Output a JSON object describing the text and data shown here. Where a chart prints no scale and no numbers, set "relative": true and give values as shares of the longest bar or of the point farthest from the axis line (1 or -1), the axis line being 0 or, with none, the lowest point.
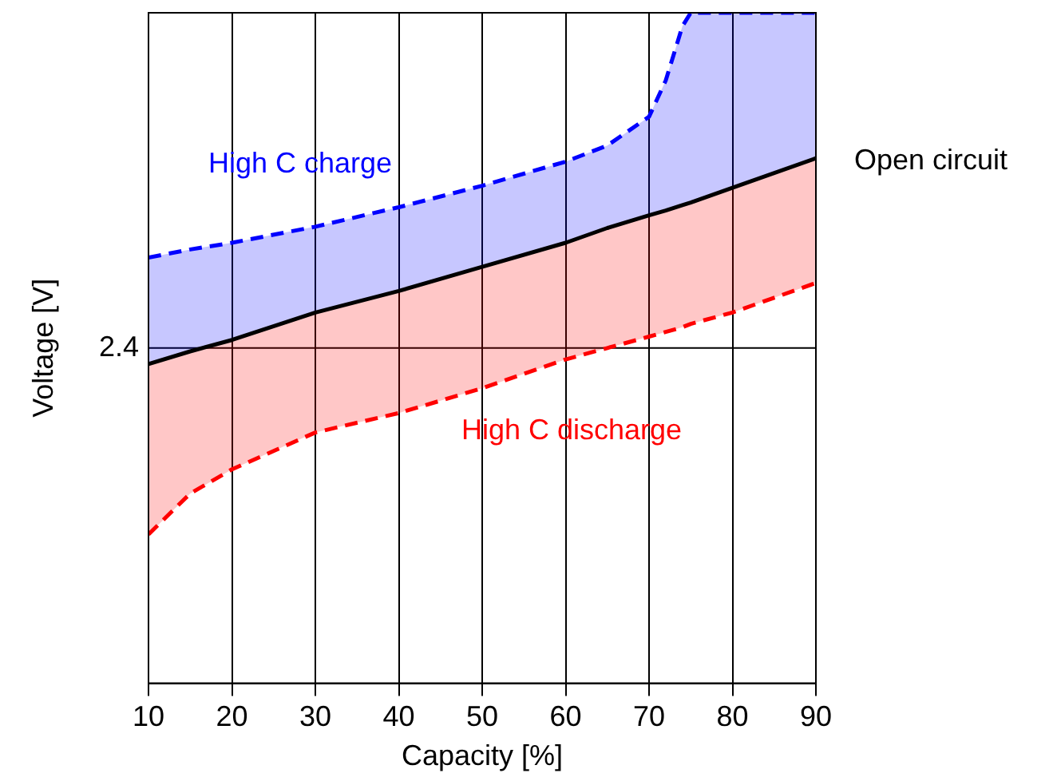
{
  "chart_data": {
    "type": "line",
    "relative": true,
    "xlabel": "Capacity [%]",
    "ylabel": "Voltage [V]",
    "xlim": [
      10,
      90
    ],
    "xticks": [
      10,
      20,
      30,
      40,
      50,
      60,
      70,
      80,
      90
    ],
    "grid": "x",
    "legend": false,
    "marker": "none",
    "ref_lines": [
      {
        "axis": "y",
        "value": 0.5,
        "color": "#000000"
      }
    ],
    "annotations": [
      "2.4"
    ],
    "series": [
      {
        "name": "High C charge",
        "color": "#0000ff",
        "line_style": "dashed",
        "x": [
          10,
          15,
          20,
          30,
          40,
          50,
          60,
          65,
          70,
          72,
          74,
          75,
          80,
          90
        ],
        "values": [
          0.635,
          0.647,
          0.657,
          0.681,
          0.71,
          0.742,
          0.778,
          0.802,
          0.845,
          0.899,
          0.98,
          1,
          1,
          1
        ],
        "upper": [
          0.635,
          0.647,
          0.657,
          0.681,
          0.71,
          0.742,
          0.778,
          0.802,
          0.845,
          0.899,
          0.98,
          1,
          1,
          1
        ],
        "lower": [
          0.476,
          0.495,
          0.512,
          0.553,
          0.585,
          0.621,
          0.657,
          0.679,
          0.698,
          0.705,
          0.713,
          0.717,
          0.739,
          0.783
        ]
      },
      {
        "name": "Open circuit",
        "color": "#000000",
        "line_style": "solid",
        "x": [
          10,
          15,
          20,
          30,
          40,
          50,
          60,
          65,
          70,
          72,
          74,
          75,
          80,
          90
        ],
        "values": [
          0.476,
          0.495,
          0.512,
          0.553,
          0.585,
          0.621,
          0.657,
          0.679,
          0.698,
          0.705,
          0.713,
          0.717,
          0.739,
          0.783
        ]
      },
      {
        "name": "High C discharge",
        "color": "#ff0000",
        "line_style": "dashed",
        "x": [
          10,
          15,
          20,
          30,
          40,
          50,
          60,
          65,
          70,
          72,
          74,
          75,
          80,
          90
        ],
        "values": [
          0.222,
          0.283,
          0.319,
          0.374,
          0.403,
          0.44,
          0.483,
          0.5,
          0.517,
          0.524,
          0.531,
          0.536,
          0.553,
          0.597
        ],
        "lower": [
          0.222,
          0.283,
          0.319,
          0.374,
          0.403,
          0.44,
          0.483,
          0.5,
          0.517,
          0.524,
          0.531,
          0.536,
          0.553,
          0.597
        ],
        "upper": [
          0.476,
          0.495,
          0.512,
          0.553,
          0.585,
          0.621,
          0.657,
          0.679,
          0.698,
          0.705,
          0.713,
          0.717,
          0.739,
          0.783
        ]
      }
    ]
  }
}
